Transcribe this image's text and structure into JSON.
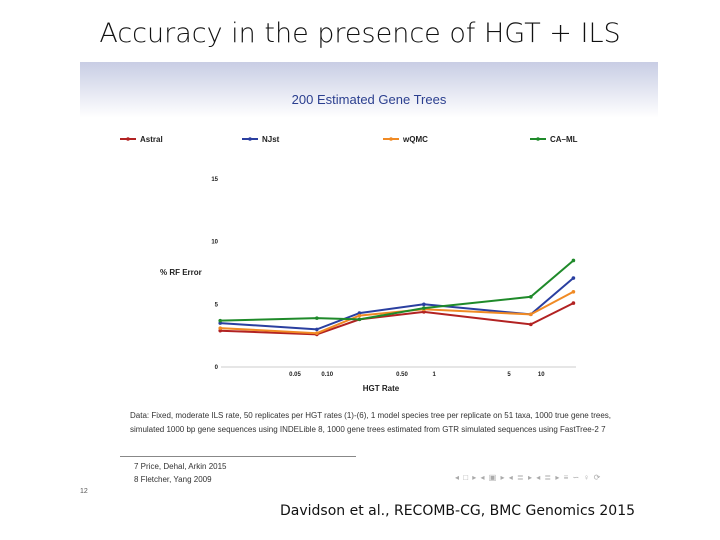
{
  "slide_title": "Accuracy in the presence of HGT + ILS",
  "citation": "Davidson et al., RECOMB-CG, BMC Genomics 2015",
  "page_number": "12",
  "caption_line1": "Data: Fixed, moderate ILS rate, 50 replicates per HGT rates (1)-(6), 1 model species tree per replicate on 51 taxa, 1000 true gene trees,",
  "caption_line2": "simulated 1000 bp gene sequences using INDELible 8, 1000 gene trees estimated from GTR simulated sequences using FastTree-2 7",
  "footnotes": [
    "7 Price, Dehal, Arkin 2015",
    "8 Fletcher, Yang 2009"
  ],
  "nav_symbols": "◂ □ ▸ ◂ ▣ ▸ ◂ ≣ ▸ ◂ ≣ ▸  ≡  ∽ ♀ ⟳",
  "chart_data": {
    "type": "line",
    "title": "200 Estimated Gene Trees",
    "xlabel": "HGT Rate",
    "ylabel": "% RF Error",
    "xscale": "log",
    "x": [
      0.01,
      0.08,
      0.2,
      0.8,
      8,
      20
    ],
    "xticks": [
      0.05,
      0.1,
      0.5,
      1,
      5,
      10
    ],
    "xtick_labels": [
      "0.05",
      "0.10",
      "0.50",
      "1",
      "5",
      "10"
    ],
    "yticks": [
      0,
      5,
      10,
      15
    ],
    "ytick_labels": [
      "0",
      "5",
      "10",
      "15"
    ],
    "ylim": [
      0,
      15
    ],
    "legend_placement": "top",
    "series": [
      {
        "name": "Astral",
        "color": "#b22222",
        "values": [
          2.9,
          2.6,
          3.8,
          4.4,
          3.4,
          5.1
        ]
      },
      {
        "name": "NJst",
        "color": "#2a3fa0",
        "values": [
          3.5,
          3.0,
          4.3,
          5.0,
          4.2,
          7.1
        ]
      },
      {
        "name": "wQMC",
        "color": "#f08a24",
        "values": [
          3.1,
          2.7,
          4.1,
          4.6,
          4.2,
          6.0
        ]
      },
      {
        "name": "CA–ML",
        "color": "#1f8a2a",
        "values": [
          3.7,
          3.9,
          3.8,
          4.7,
          5.6,
          8.5
        ]
      }
    ]
  }
}
